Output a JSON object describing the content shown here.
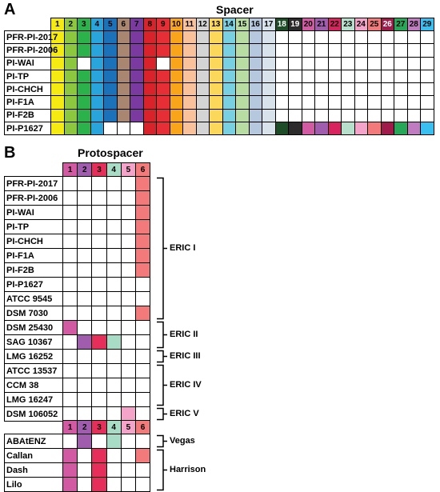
{
  "panelA": {
    "label": "A",
    "title": "Spacer",
    "headers": [
      "1",
      "2",
      "3",
      "4",
      "5",
      "6",
      "7",
      "8",
      "9",
      "10",
      "11",
      "12",
      "13",
      "14",
      "15",
      "16",
      "17",
      "18",
      "19",
      "20",
      "21",
      "22",
      "23",
      "24",
      "25",
      "26",
      "27",
      "28",
      "29"
    ],
    "header_colors": [
      "#f5ea12",
      "#8dc63f",
      "#2bb24b",
      "#2aa5dc",
      "#1b72b8",
      "#a88670",
      "#7b3aa0",
      "#d9232a",
      "#e62e36",
      "#f8a51b",
      "#f9c29a",
      "#d4d4d4",
      "#fbd85a",
      "#79d0e0",
      "#b7dda3",
      "#b5c8de",
      "#d8e2ea",
      "#1d4d26",
      "#2b2b2b",
      "#d15aa2",
      "#a05cad",
      "#d9235e",
      "#b7e0cc",
      "#f3a4c8",
      "#f27a7a",
      "#a01b4a",
      "#27a859",
      "#c07cc0",
      "#39bff0"
    ],
    "header_text_white": [
      18,
      19,
      26
    ],
    "rows": [
      {
        "label": "PFR-PI-2017",
        "fill": [
          1,
          2,
          3,
          4,
          5,
          6,
          7,
          8,
          9,
          10,
          11,
          12,
          13,
          14,
          15,
          16,
          17
        ]
      },
      {
        "label": "PFR-PI-2006",
        "fill": [
          1,
          2,
          3,
          4,
          5,
          6,
          7,
          8,
          9,
          10,
          11,
          12,
          13,
          14,
          15,
          16,
          17
        ]
      },
      {
        "label": "PI-WAI",
        "fill": [
          1,
          2,
          4,
          5,
          6,
          7,
          8,
          10,
          11,
          12,
          13,
          14,
          15,
          16,
          17
        ]
      },
      {
        "label": "PI-TP",
        "fill": [
          1,
          2,
          3,
          4,
          5,
          6,
          7,
          8,
          9,
          10,
          11,
          12,
          13,
          14,
          15,
          16,
          17
        ]
      },
      {
        "label": "PI-CHCH",
        "fill": [
          1,
          2,
          3,
          4,
          5,
          6,
          7,
          8,
          9,
          10,
          11,
          12,
          13,
          14,
          15,
          16,
          17
        ]
      },
      {
        "label": "PI-F1A",
        "fill": [
          1,
          2,
          3,
          4,
          5,
          6,
          7,
          8,
          9,
          10,
          11,
          12,
          13,
          14,
          15,
          16,
          17
        ]
      },
      {
        "label": "PI-F2B",
        "fill": [
          1,
          2,
          3,
          4,
          5,
          6,
          7,
          8,
          9,
          10,
          11,
          12,
          13,
          14,
          15,
          16,
          17
        ]
      },
      {
        "label": "PI-P1627",
        "fill": [
          1,
          2,
          3,
          4,
          8,
          9,
          10,
          11,
          12,
          13,
          14,
          15,
          16,
          17,
          18,
          19,
          20,
          21,
          22,
          23,
          24,
          25,
          26,
          27,
          28,
          29
        ]
      }
    ]
  },
  "panelB": {
    "label": "B",
    "title": "Protospacer",
    "headers": [
      "1",
      "2",
      "3",
      "4",
      "5",
      "6"
    ],
    "header_colors": [
      "#d15aa2",
      "#a05cad",
      "#e62e5a",
      "#a8dcc6",
      "#f3a4c8",
      "#f27a7a"
    ],
    "rows": [
      {
        "label": "PFR-PI-2017",
        "fill": [
          6
        ]
      },
      {
        "label": "PFR-PI-2006",
        "fill": [
          6
        ]
      },
      {
        "label": "PI-WAI",
        "fill": [
          6
        ]
      },
      {
        "label": "PI-TP",
        "fill": [
          6
        ]
      },
      {
        "label": "PI-CHCH",
        "fill": [
          6
        ]
      },
      {
        "label": "PI-F1A",
        "fill": [
          6
        ]
      },
      {
        "label": "PI-F2B",
        "fill": [
          6
        ]
      },
      {
        "label": "PI-P1627",
        "fill": []
      },
      {
        "label": "ATCC 9545",
        "fill": []
      },
      {
        "label": "DSM 7030",
        "fill": [
          6
        ]
      },
      {
        "label": "DSM 25430",
        "fill": [
          1
        ]
      },
      {
        "label": "SAG 10367",
        "fill": [
          2,
          3,
          4
        ]
      },
      {
        "label": "LMG 16252",
        "fill": []
      },
      {
        "label": "ATCC 13537",
        "fill": []
      },
      {
        "label": "CCM 38",
        "fill": []
      },
      {
        "label": "LMG 16247",
        "fill": []
      },
      {
        "label": "DSM 106052",
        "fill": [
          5
        ]
      }
    ],
    "groups": [
      {
        "label": "ERIC I",
        "from": 0,
        "to": 9
      },
      {
        "label": "ERIC II",
        "from": 10,
        "to": 11
      },
      {
        "label": "ERIC III",
        "from": 12,
        "to": 12
      },
      {
        "label": "ERIC IV",
        "from": 13,
        "to": 15
      },
      {
        "label": "ERIC V",
        "from": 16,
        "to": 16
      }
    ]
  },
  "panelC": {
    "headers": [
      "1",
      "2",
      "3",
      "4",
      "5",
      "6"
    ],
    "header_colors": [
      "#d15aa2",
      "#a05cad",
      "#e62e5a",
      "#a8dcc6",
      "#f3a4c8",
      "#f27a7a"
    ],
    "rows": [
      {
        "label": "ABAtENZ",
        "fill": [
          2,
          4
        ]
      },
      {
        "label": "Callan",
        "fill": [
          1,
          3,
          6
        ]
      },
      {
        "label": "Dash",
        "fill": [
          1,
          3
        ]
      },
      {
        "label": "Lilo",
        "fill": [
          1,
          3
        ]
      }
    ],
    "groups": [
      {
        "label": "Vegas",
        "from": 0,
        "to": 0
      },
      {
        "label": "Harrison",
        "from": 1,
        "to": 3
      }
    ]
  }
}
